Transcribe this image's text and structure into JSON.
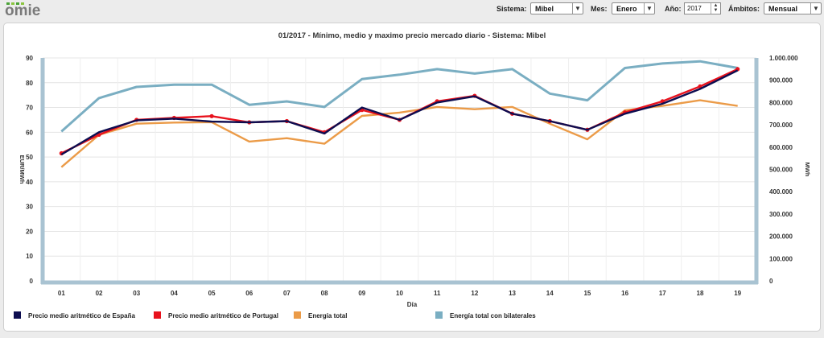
{
  "app": {
    "logo_text": "omie"
  },
  "controls": {
    "sistema": {
      "label": "Sistema:",
      "value": "Mibel"
    },
    "mes": {
      "label": "Mes:",
      "value": "Enero"
    },
    "anio": {
      "label": "Año:",
      "value": "2017"
    },
    "ambitos": {
      "label": "Ámbitos:",
      "value": "Mensual"
    }
  },
  "colors": {
    "espana": "#0d0d50",
    "portugal": "#e8121d",
    "energia": "#eb9b48",
    "bilaterales": "#7aaec2",
    "axis": "#a9c3d2"
  },
  "chart_data": {
    "type": "line",
    "title": "01/2017 - Mínimo, medio y maximo precio mercado diario - Sistema: Mibel",
    "xlabel": "Día",
    "ylabel_left": "EUR/MWh",
    "ylabel_right": "MWh",
    "categories": [
      "01",
      "02",
      "03",
      "04",
      "05",
      "06",
      "07",
      "08",
      "09",
      "10",
      "11",
      "12",
      "13",
      "14",
      "15",
      "16",
      "17",
      "18",
      "19"
    ],
    "y_left": {
      "min": 0,
      "max": 90,
      "ticks": [
        "0",
        "10",
        "20",
        "30",
        "40",
        "50",
        "60",
        "70",
        "80",
        "90"
      ]
    },
    "y_right": {
      "min": 0,
      "max": 1000000,
      "ticks": [
        "0",
        "100.000",
        "200.000",
        "300.000",
        "400.000",
        "500.000",
        "600.000",
        "700.000",
        "800.000",
        "900.000",
        "1.000.000"
      ]
    },
    "grid": true,
    "legend_position": "bottom",
    "series": [
      {
        "name": "Precio medio aritmético de España",
        "axis": "left",
        "color": "#0d0d50",
        "markers": false,
        "values": [
          51,
          60,
          64.8,
          65.5,
          64.3,
          64,
          64.5,
          59.5,
          70,
          65,
          72,
          74.5,
          67.5,
          64.5,
          61,
          67.5,
          71.5,
          77.5,
          85
        ]
      },
      {
        "name": "Precio medio aritmético de Portugal",
        "axis": "left",
        "color": "#e8121d",
        "markers": true,
        "values": [
          51.5,
          59,
          65,
          65.8,
          66.5,
          64,
          64.5,
          60,
          69,
          65,
          72.5,
          74.7,
          67.5,
          64.5,
          61,
          68,
          72.5,
          78.5,
          85.5
        ]
      },
      {
        "name": "Energía total",
        "axis": "right",
        "color": "#eb9b48",
        "markers": false,
        "values": [
          510000,
          655000,
          705000,
          710000,
          712000,
          625000,
          640000,
          615000,
          740000,
          755000,
          780000,
          770000,
          780000,
          705000,
          635000,
          765000,
          785000,
          810000,
          785000
        ]
      },
      {
        "name": "Energía total con bilaterales",
        "axis": "right",
        "color": "#7aaec2",
        "markers": false,
        "values": [
          670000,
          820000,
          870000,
          880000,
          880000,
          790000,
          805000,
          780000,
          905000,
          925000,
          950000,
          930000,
          950000,
          840000,
          810000,
          955000,
          975000,
          985000,
          955000
        ]
      }
    ]
  }
}
